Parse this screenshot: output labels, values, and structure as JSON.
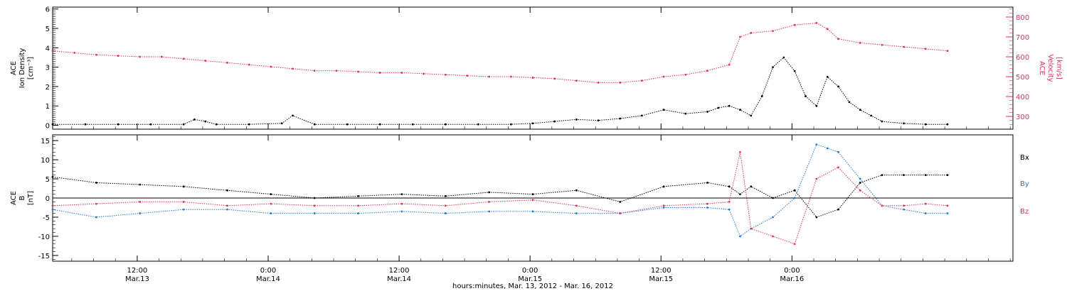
{
  "colors": {
    "density": "#000000",
    "velocity": "#e0305e",
    "bx": "#000000",
    "by": "#1f7ad8",
    "bz": "#e0305e"
  },
  "chart_data": [
    {
      "type": "scatter",
      "panel": "top",
      "ylabel_left": [
        "ACE",
        "Ion Density",
        "[cm⁻³]"
      ],
      "ylabel_right": [
        "ACE",
        "Velocity",
        "[km/s]"
      ],
      "ylim_left": [
        -0.2,
        6.1
      ],
      "ylim_right": [
        236,
        850
      ],
      "yticks_left": [
        "0",
        "1",
        "2",
        "3",
        "4",
        "5",
        "6"
      ],
      "yticks_right": [
        "300",
        "400",
        "500",
        "600",
        "700",
        "800"
      ],
      "series": [
        {
          "key": "density",
          "axis": "left",
          "x": [
            0,
            3,
            6,
            9,
            12,
            13,
            14,
            15,
            18,
            21,
            22,
            24,
            27,
            30,
            33,
            36,
            39,
            42,
            44,
            46,
            48,
            50,
            52,
            54,
            56,
            58,
            60,
            61,
            62,
            63,
            64,
            65,
            66,
            67,
            68,
            69,
            70,
            71,
            72,
            73,
            74,
            75,
            76,
            78,
            80,
            82
          ],
          "y": [
            0.05,
            0.05,
            0.05,
            0.05,
            0.05,
            0.3,
            0.2,
            0.05,
            0.05,
            0.1,
            0.5,
            0.05,
            0.05,
            0.05,
            0.05,
            0.05,
            0.05,
            0.05,
            0.1,
            0.2,
            0.3,
            0.25,
            0.35,
            0.5,
            0.8,
            0.6,
            0.7,
            0.9,
            1.0,
            0.8,
            0.5,
            1.5,
            3.0,
            3.5,
            2.8,
            1.5,
            1.0,
            2.5,
            2.0,
            1.2,
            0.8,
            0.5,
            0.2,
            0.1,
            0.05,
            0.05
          ]
        },
        {
          "key": "velocity",
          "axis": "right",
          "x": [
            0,
            2,
            4,
            6,
            8,
            10,
            12,
            14,
            16,
            18,
            20,
            22,
            24,
            26,
            28,
            30,
            32,
            34,
            36,
            38,
            40,
            42,
            44,
            46,
            48,
            50,
            52,
            54,
            56,
            58,
            60,
            62,
            63,
            64,
            66,
            68,
            70,
            71,
            72,
            74,
            76,
            78,
            80,
            82
          ],
          "y": [
            630,
            620,
            610,
            605,
            600,
            600,
            590,
            580,
            570,
            560,
            550,
            540,
            530,
            530,
            525,
            520,
            520,
            515,
            510,
            505,
            500,
            500,
            495,
            490,
            480,
            470,
            470,
            480,
            500,
            510,
            530,
            560,
            700,
            720,
            730,
            760,
            770,
            740,
            690,
            670,
            660,
            650,
            640,
            630
          ]
        }
      ]
    },
    {
      "type": "scatter",
      "panel": "bottom",
      "ylabel_left": [
        "ACE",
        "B",
        "[nT]"
      ],
      "ylim": [
        -16.5,
        16.5
      ],
      "yticks": [
        "15",
        "10",
        "5",
        "0",
        "-5",
        "-10",
        "-15"
      ],
      "legend": [
        "Bx",
        "By",
        "Bz"
      ],
      "series": [
        {
          "key": "bx",
          "x": [
            0,
            4,
            8,
            12,
            16,
            20,
            24,
            28,
            32,
            36,
            40,
            44,
            48,
            52,
            56,
            60,
            62,
            63,
            64,
            66,
            68,
            70,
            72,
            74,
            76,
            78,
            80,
            82
          ],
          "y": [
            5.5,
            4,
            3.5,
            3,
            2,
            1,
            0,
            0.5,
            1,
            0.5,
            1.5,
            1,
            2,
            -1,
            3,
            4,
            3,
            1,
            3,
            0,
            2,
            -5,
            -3,
            4,
            6,
            6,
            6,
            6
          ]
        },
        {
          "key": "by",
          "x": [
            0,
            4,
            8,
            12,
            16,
            20,
            24,
            28,
            32,
            36,
            40,
            44,
            48,
            52,
            56,
            60,
            62,
            63,
            64,
            66,
            68,
            70,
            71,
            72,
            74,
            76,
            78,
            80,
            82
          ],
          "y": [
            -3,
            -5,
            -4,
            -3,
            -3,
            -4,
            -4,
            -4,
            -3.5,
            -4,
            -3.5,
            -3.5,
            -4,
            -4,
            -2.5,
            -2.5,
            -3,
            -10,
            -8,
            -5,
            0,
            14,
            13,
            12,
            5,
            -2,
            -3,
            -4,
            -4
          ]
        },
        {
          "key": "bz",
          "x": [
            0,
            4,
            8,
            12,
            16,
            20,
            24,
            28,
            32,
            36,
            40,
            44,
            48,
            52,
            56,
            60,
            62,
            63,
            64,
            66,
            68,
            70,
            72,
            74,
            76,
            78,
            80,
            82
          ],
          "y": [
            -2,
            -1.5,
            -1,
            -1,
            -2,
            -1.5,
            -2,
            -2,
            -1.5,
            -2,
            -1,
            -0.5,
            -2,
            -4,
            -2,
            -1.5,
            -1,
            12,
            -8,
            -10,
            -12,
            5,
            8,
            2,
            -2,
            -2,
            -1.5,
            -2
          ]
        }
      ]
    }
  ],
  "x_axis": {
    "range_hours": [
      0,
      88
    ],
    "ticks": [
      {
        "x": 7.75,
        "time": "12:00",
        "date": "Mar.13"
      },
      {
        "x": 19.75,
        "time": "0:00",
        "date": "Mar.14"
      },
      {
        "x": 31.75,
        "time": "12:00",
        "date": "Mar.14"
      },
      {
        "x": 43.75,
        "time": "0:00",
        "date": "Mar.15"
      },
      {
        "x": 55.75,
        "time": "12:00",
        "date": "Mar.15"
      },
      {
        "x": 67.75,
        "time": "0:00",
        "date": "Mar.16"
      }
    ],
    "xlabel": "hours:minutes, Mar. 13, 2012 - Mar. 16, 2012"
  }
}
